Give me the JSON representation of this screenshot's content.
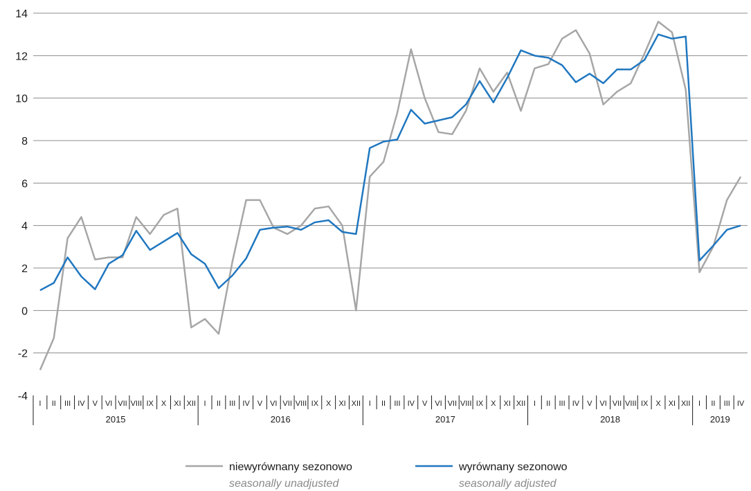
{
  "chart_data": {
    "type": "line",
    "ylim": [
      -4,
      14
    ],
    "yticks": [
      -4,
      -2,
      0,
      2,
      4,
      6,
      8,
      10,
      12,
      14
    ],
    "grid": true,
    "legend_position": "bottom",
    "years": [
      {
        "label": "2015",
        "months": [
          "I",
          "II",
          "III",
          "IV",
          "V",
          "VI",
          "VII",
          "VIII",
          "IX",
          "X",
          "XI",
          "XII"
        ]
      },
      {
        "label": "2016",
        "months": [
          "I",
          "II",
          "III",
          "IV",
          "V",
          "VI",
          "VII",
          "VIII",
          "IX",
          "X",
          "XI",
          "XII"
        ]
      },
      {
        "label": "2017",
        "months": [
          "I",
          "II",
          "III",
          "IV",
          "V",
          "VI",
          "VII",
          "VIII",
          "IX",
          "X",
          "XI",
          "XII"
        ]
      },
      {
        "label": "2018",
        "months": [
          "I",
          "II",
          "III",
          "IV",
          "V",
          "VI",
          "VII",
          "VIII",
          "IX",
          "X",
          "XI",
          "XII"
        ]
      },
      {
        "label": "2019",
        "months": [
          "I",
          "II",
          "III",
          "IV"
        ]
      }
    ],
    "series": [
      {
        "name": "niewyrównany sezonowo",
        "name_en": "seasonally unadjusted",
        "color": "#a6a6a6",
        "values": [
          -2.8,
          -1.3,
          3.4,
          4.4,
          2.4,
          2.5,
          2.5,
          4.4,
          3.6,
          4.5,
          4.8,
          -0.8,
          -0.4,
          -1.1,
          2.3,
          5.2,
          5.2,
          3.9,
          3.6,
          4.0,
          4.8,
          4.9,
          4.0,
          0.0,
          6.3,
          7.0,
          9.3,
          12.3,
          10.0,
          8.4,
          8.3,
          9.4,
          11.4,
          10.3,
          11.2,
          9.4,
          11.4,
          11.6,
          12.8,
          13.2,
          12.1,
          9.7,
          10.3,
          10.7,
          12.1,
          13.6,
          13.1,
          10.4,
          1.8,
          3.0,
          5.2,
          6.3
        ]
      },
      {
        "name": "wyrównany sezonowo",
        "name_en": "seasonally adjusted",
        "color": "#1f77c0",
        "values": [
          0.95,
          1.3,
          2.5,
          1.6,
          1.0,
          2.2,
          2.6,
          3.75,
          2.85,
          3.25,
          3.65,
          2.65,
          2.2,
          1.05,
          1.65,
          2.45,
          3.8,
          3.9,
          3.95,
          3.8,
          4.15,
          4.25,
          3.7,
          3.6,
          7.65,
          7.95,
          8.05,
          9.45,
          8.8,
          8.95,
          9.1,
          9.7,
          10.8,
          9.8,
          10.95,
          12.25,
          12.0,
          11.9,
          11.55,
          10.75,
          11.15,
          10.7,
          11.35,
          11.35,
          11.8,
          13.0,
          12.8,
          12.9,
          2.35,
          3.05,
          3.8,
          4.0
        ]
      }
    ]
  }
}
